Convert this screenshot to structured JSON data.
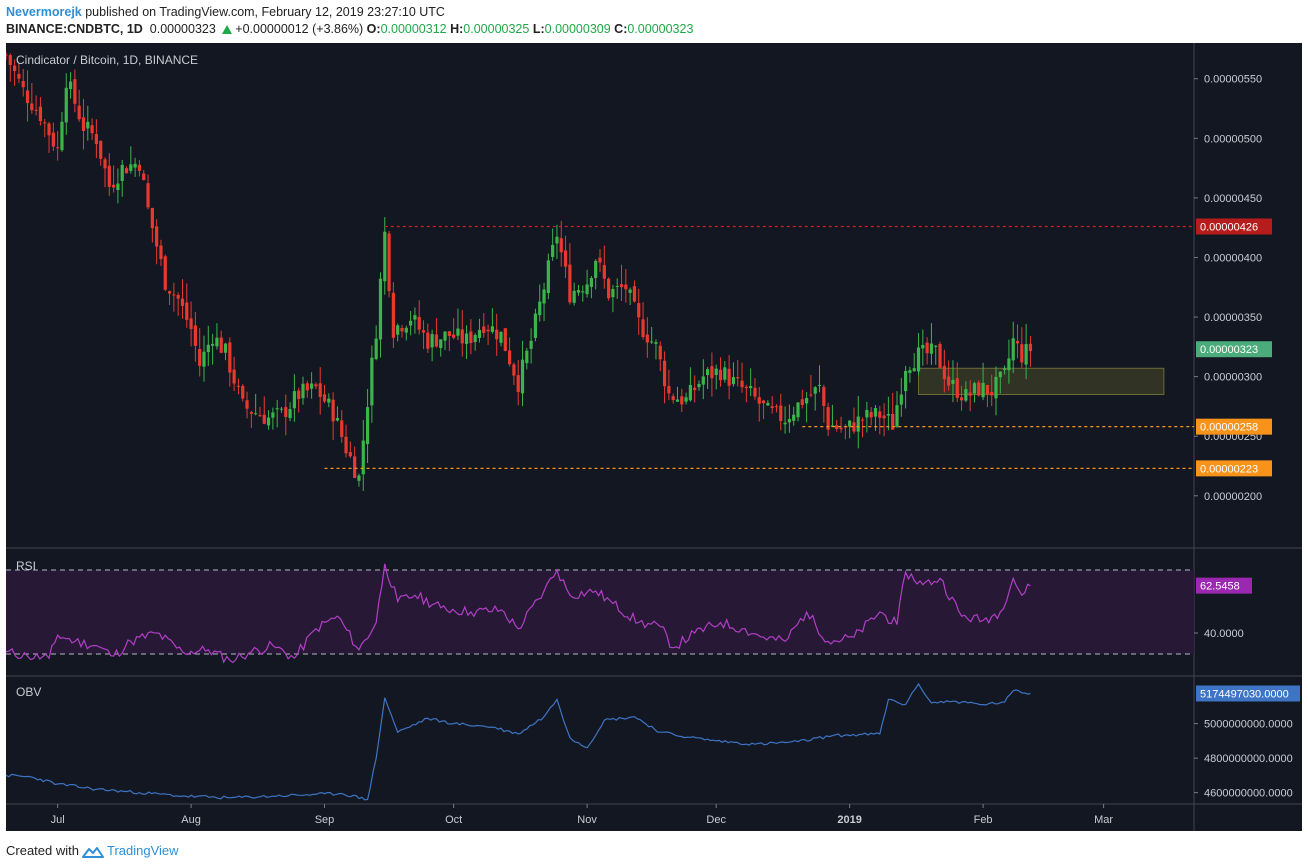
{
  "header": {
    "user": "Nevermorejk",
    "published_text": "published on TradingView.com, February 12, 2019 23:27:10 UTC",
    "symbol": "BINANCE:CNDBTC, 1D",
    "last": "0.00000323",
    "change": "+0.00000012 (+3.86%)",
    "open_label": "O:",
    "open": "0.00000312",
    "high_label": "H:",
    "high": "0.00000325",
    "low_label": "L:",
    "low": "0.00000309",
    "close_label": "C:",
    "close": "0.00000323"
  },
  "chart_title": "Cindicator / Bitcoin, 1D, BINANCE",
  "rsi_label": "RSI",
  "obv_label": "OBV",
  "footer": {
    "created_with": "Created with",
    "brand": "TradingView"
  },
  "colors": {
    "background": "#131722",
    "up": "#26a69a",
    "up_candle": "#3bb54a",
    "down": "#e8392f",
    "rsi": "#b23fc6",
    "rsi_band": "#2a1838",
    "obv": "#3e74c4",
    "resistance": "#c82020",
    "support": "#f7931a",
    "zone": "#4a4a26",
    "current_price": "#4cab7a"
  },
  "chart_data": [
    {
      "type": "candlestick",
      "title": "Cindicator / Bitcoin, 1D, BINANCE",
      "x_tick_labels": [
        "Jul",
        "Aug",
        "Sep",
        "Oct",
        "Nov",
        "Dec",
        "2019",
        "Feb",
        "Mar"
      ],
      "y_tick_labels": [
        "0.00000550",
        "0.00000500",
        "0.00000450",
        "0.00000400",
        "0.00000350",
        "0.00000300",
        "0.00000250",
        "0.00000200"
      ],
      "ylim": [
        1.57e-06,
        5.8e-06
      ],
      "price_tags": [
        {
          "label": "0.00000426",
          "value": 4.26e-06,
          "color": "#b71c1c"
        },
        {
          "label": "0.00000323",
          "value": 3.23e-06,
          "color": "#4cab7a"
        },
        {
          "label": "0.00000258",
          "value": 2.58e-06,
          "color": "#f7931a"
        },
        {
          "label": "0.00000223",
          "value": 2.23e-06,
          "color": "#f7931a"
        }
      ],
      "lines": [
        {
          "name": "resistance",
          "value": 4.26e-06,
          "from": "2018-09-15",
          "style": "dashed"
        },
        {
          "name": "support",
          "value": 2.58e-06,
          "from": "2018-12-21",
          "style": "dashed"
        },
        {
          "name": "support",
          "value": 2.23e-06,
          "from": "2018-09-01",
          "style": "dashed"
        }
      ],
      "zone": {
        "from": "2019-01-17",
        "to": "2019-03-15",
        "low": 2.85e-06,
        "high": 3.07e-06
      },
      "close_points": [
        [
          "2018-06-19",
          5.7e-06
        ],
        [
          "2018-06-23",
          5.4e-06
        ],
        [
          "2018-06-27",
          5.2e-06
        ],
        [
          "2018-07-01",
          4.9e-06
        ],
        [
          "2018-07-03",
          5.5e-06
        ],
        [
          "2018-07-07",
          5.1e-06
        ],
        [
          "2018-07-10",
          5e-06
        ],
        [
          "2018-07-13",
          4.6e-06
        ],
        [
          "2018-07-16",
          4.75e-06
        ],
        [
          "2018-07-20",
          4.8e-06
        ],
        [
          "2018-07-22",
          4.4e-06
        ],
        [
          "2018-07-26",
          3.8e-06
        ],
        [
          "2018-07-29",
          3.65e-06
        ],
        [
          "2018-08-01",
          3.4e-06
        ],
        [
          "2018-08-03",
          3.1e-06
        ],
        [
          "2018-08-06",
          3.35e-06
        ],
        [
          "2018-08-09",
          3.2e-06
        ],
        [
          "2018-08-13",
          2.75e-06
        ],
        [
          "2018-08-16",
          2.7e-06
        ],
        [
          "2018-08-19",
          2.65e-06
        ],
        [
          "2018-08-22",
          2.68e-06
        ],
        [
          "2018-08-26",
          2.85e-06
        ],
        [
          "2018-08-30",
          2.9e-06
        ],
        [
          "2018-09-03",
          2.7e-06
        ],
        [
          "2018-09-06",
          2.4e-06
        ],
        [
          "2018-09-09",
          2.15e-06
        ],
        [
          "2018-09-11",
          2.8e-06
        ],
        [
          "2018-09-13",
          3.4e-06
        ],
        [
          "2018-09-15",
          4.2e-06
        ],
        [
          "2018-09-17",
          3.4e-06
        ],
        [
          "2018-09-21",
          3.5e-06
        ],
        [
          "2018-09-25",
          3.3e-06
        ],
        [
          "2018-09-30",
          3.35e-06
        ],
        [
          "2018-10-04",
          3.3e-06
        ],
        [
          "2018-10-08",
          3.45e-06
        ],
        [
          "2018-10-12",
          3.35e-06
        ],
        [
          "2018-10-16",
          2.95e-06
        ],
        [
          "2018-10-19",
          3.3e-06
        ],
        [
          "2018-10-23",
          3.9e-06
        ],
        [
          "2018-10-25",
          4.2e-06
        ],
        [
          "2018-10-28",
          3.7e-06
        ],
        [
          "2018-11-01",
          3.8e-06
        ],
        [
          "2018-11-03",
          4e-06
        ],
        [
          "2018-11-06",
          3.7e-06
        ],
        [
          "2018-11-10",
          3.75e-06
        ],
        [
          "2018-11-13",
          3.45e-06
        ],
        [
          "2018-11-17",
          3.25e-06
        ],
        [
          "2018-11-20",
          2.85e-06
        ],
        [
          "2018-11-24",
          2.8e-06
        ],
        [
          "2018-11-28",
          3e-06
        ],
        [
          "2018-12-02",
          3.05e-06
        ],
        [
          "2018-12-05",
          2.95e-06
        ],
        [
          "2018-12-09",
          2.85e-06
        ],
        [
          "2018-12-13",
          2.7e-06
        ],
        [
          "2018-12-17",
          2.65e-06
        ],
        [
          "2018-12-21",
          2.8e-06
        ],
        [
          "2018-12-25",
          2.9e-06
        ],
        [
          "2018-12-27",
          2.6e-06
        ],
        [
          "2018-12-31",
          2.55e-06
        ],
        [
          "2019-01-04",
          2.65e-06
        ],
        [
          "2019-01-08",
          2.68e-06
        ],
        [
          "2019-01-11",
          2.6e-06
        ],
        [
          "2019-01-14",
          3.1e-06
        ],
        [
          "2019-01-17",
          3.18e-06
        ],
        [
          "2019-01-21",
          3.2e-06
        ],
        [
          "2019-01-24",
          2.95e-06
        ],
        [
          "2019-01-28",
          2.83e-06
        ],
        [
          "2019-01-31",
          2.9e-06
        ],
        [
          "2019-02-03",
          2.88e-06
        ],
        [
          "2019-02-06",
          3e-06
        ],
        [
          "2019-02-08",
          3.3e-06
        ],
        [
          "2019-02-10",
          3.18e-06
        ],
        [
          "2019-02-12",
          3.23e-06
        ]
      ]
    },
    {
      "type": "line",
      "name": "RSI",
      "y_tick_labels": [
        "40.0000"
      ],
      "bands": [
        70,
        30
      ],
      "ylim": [
        20,
        80
      ],
      "last_value_label": "62.5458",
      "points": [
        [
          "2018-06-19",
          31
        ],
        [
          "2018-06-24",
          29
        ],
        [
          "2018-06-29",
          28
        ],
        [
          "2018-07-01",
          39
        ],
        [
          "2018-07-05",
          36
        ],
        [
          "2018-07-10",
          34
        ],
        [
          "2018-07-14",
          29
        ],
        [
          "2018-07-18",
          36
        ],
        [
          "2018-07-24",
          40
        ],
        [
          "2018-07-30",
          31
        ],
        [
          "2018-08-05",
          32
        ],
        [
          "2018-08-10",
          27
        ],
        [
          "2018-08-15",
          31
        ],
        [
          "2018-08-20",
          34
        ],
        [
          "2018-08-25",
          28
        ],
        [
          "2018-08-30",
          42
        ],
        [
          "2018-09-04",
          48
        ],
        [
          "2018-09-09",
          32
        ],
        [
          "2018-09-13",
          45
        ],
        [
          "2018-09-15",
          73
        ],
        [
          "2018-09-18",
          55
        ],
        [
          "2018-09-22",
          58
        ],
        [
          "2018-09-28",
          52
        ],
        [
          "2018-10-05",
          50
        ],
        [
          "2018-10-12",
          51
        ],
        [
          "2018-10-16",
          42
        ],
        [
          "2018-10-22",
          60
        ],
        [
          "2018-10-25",
          70
        ],
        [
          "2018-10-28",
          58
        ],
        [
          "2018-11-03",
          60
        ],
        [
          "2018-11-07",
          54
        ],
        [
          "2018-11-13",
          45
        ],
        [
          "2018-11-18",
          43
        ],
        [
          "2018-11-21",
          33
        ],
        [
          "2018-11-26",
          40
        ],
        [
          "2018-12-02",
          45
        ],
        [
          "2018-12-07",
          42
        ],
        [
          "2018-12-12",
          38
        ],
        [
          "2018-12-17",
          36
        ],
        [
          "2018-12-22",
          50
        ],
        [
          "2018-12-27",
          36
        ],
        [
          "2019-01-02",
          38
        ],
        [
          "2019-01-08",
          50
        ],
        [
          "2019-01-12",
          44
        ],
        [
          "2019-01-14",
          69
        ],
        [
          "2019-01-18",
          63
        ],
        [
          "2019-01-22",
          66
        ],
        [
          "2019-01-27",
          48
        ],
        [
          "2019-02-01",
          46
        ],
        [
          "2019-02-05",
          50
        ],
        [
          "2019-02-08",
          66
        ],
        [
          "2019-02-10",
          58
        ],
        [
          "2019-02-12",
          62.5458
        ]
      ]
    },
    {
      "type": "line",
      "name": "OBV",
      "y_tick_labels": [
        "5000000000.0000",
        "4800000000.0000",
        "4600000000.0000"
      ],
      "ylim": [
        4540000000,
        5270000000
      ],
      "last_value_label": "5174497030.0000",
      "points": [
        [
          "2018-06-19",
          4700000000
        ],
        [
          "2018-06-25",
          4690000000
        ],
        [
          "2018-07-01",
          4650000000
        ],
        [
          "2018-07-10",
          4620000000
        ],
        [
          "2018-07-20",
          4600000000
        ],
        [
          "2018-07-30",
          4580000000
        ],
        [
          "2018-08-10",
          4570000000
        ],
        [
          "2018-08-20",
          4580000000
        ],
        [
          "2018-08-30",
          4590000000
        ],
        [
          "2018-09-05",
          4595000000
        ],
        [
          "2018-09-11",
          4560000000
        ],
        [
          "2018-09-13",
          4800000000
        ],
        [
          "2018-09-15",
          5150000000
        ],
        [
          "2018-09-18",
          4950000000
        ],
        [
          "2018-09-25",
          5030000000
        ],
        [
          "2018-10-01",
          5000000000
        ],
        [
          "2018-10-10",
          4980000000
        ],
        [
          "2018-10-16",
          4940000000
        ],
        [
          "2018-10-22",
          5040000000
        ],
        [
          "2018-10-25",
          5140000000
        ],
        [
          "2018-10-28",
          4920000000
        ],
        [
          "2018-11-01",
          4860000000
        ],
        [
          "2018-11-05",
          5020000000
        ],
        [
          "2018-11-12",
          5040000000
        ],
        [
          "2018-11-18",
          4950000000
        ],
        [
          "2018-11-25",
          4920000000
        ],
        [
          "2018-12-01",
          4900000000
        ],
        [
          "2018-12-10",
          4880000000
        ],
        [
          "2018-12-20",
          4895000000
        ],
        [
          "2018-12-28",
          4930000000
        ],
        [
          "2019-01-08",
          4940000000
        ],
        [
          "2019-01-10",
          5140000000
        ],
        [
          "2019-01-14",
          5110000000
        ],
        [
          "2019-01-17",
          5230000000
        ],
        [
          "2019-01-20",
          5120000000
        ],
        [
          "2019-01-25",
          5130000000
        ],
        [
          "2019-02-01",
          5110000000
        ],
        [
          "2019-02-06",
          5125000000
        ],
        [
          "2019-02-08",
          5190000000
        ],
        [
          "2019-02-12",
          5174497030
        ]
      ]
    }
  ]
}
